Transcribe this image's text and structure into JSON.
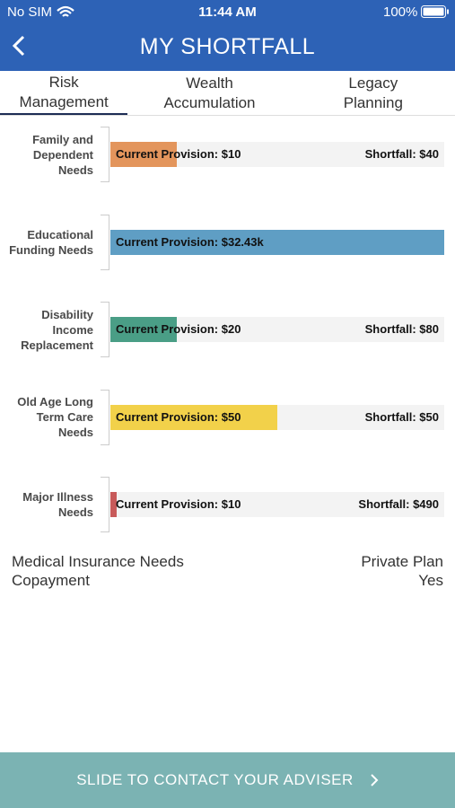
{
  "status_bar": {
    "carrier": "No SIM",
    "time": "11:44 AM",
    "battery": "100%"
  },
  "header": {
    "title": "MY SHORTFALL"
  },
  "tabs": [
    {
      "label": "Risk Management",
      "active": true
    },
    {
      "label": "Wealth Accumulation",
      "active": false
    },
    {
      "label": "Legacy Planning",
      "active": false
    }
  ],
  "chart_data": {
    "type": "progress-bar",
    "categories": [
      "Family and Dependent Needs",
      "Educational Funding Needs",
      "Disability Income Replacement",
      "Old Age Long Term Care Needs",
      "Major Illness Needs"
    ],
    "colors": [
      "#e3955c",
      "#5f9ec4",
      "#4a9e86",
      "#f2d14a",
      "#c85a5a"
    ],
    "provision": {
      "values": [
        10,
        32430,
        20,
        50,
        10
      ],
      "value_labels": [
        "Current Provision: $10",
        "Current Provision: $32.43k",
        "Current Provision: $20",
        "Current Provision: $50",
        "Current Provision: $10"
      ]
    },
    "shortfall": {
      "values": [
        40,
        null,
        80,
        50,
        490
      ],
      "value_labels": [
        "Shortfall: $40",
        null,
        "Shortfall: $80",
        "Shortfall: $50",
        "Shortfall: $490"
      ]
    }
  },
  "info": [
    {
      "label": "Medical Insurance Needs",
      "value": "Private Plan"
    },
    {
      "label": "Copayment",
      "value": "Yes"
    }
  ],
  "footer": {
    "button": "SLIDE TO CONTACT YOUR ADVISER"
  }
}
